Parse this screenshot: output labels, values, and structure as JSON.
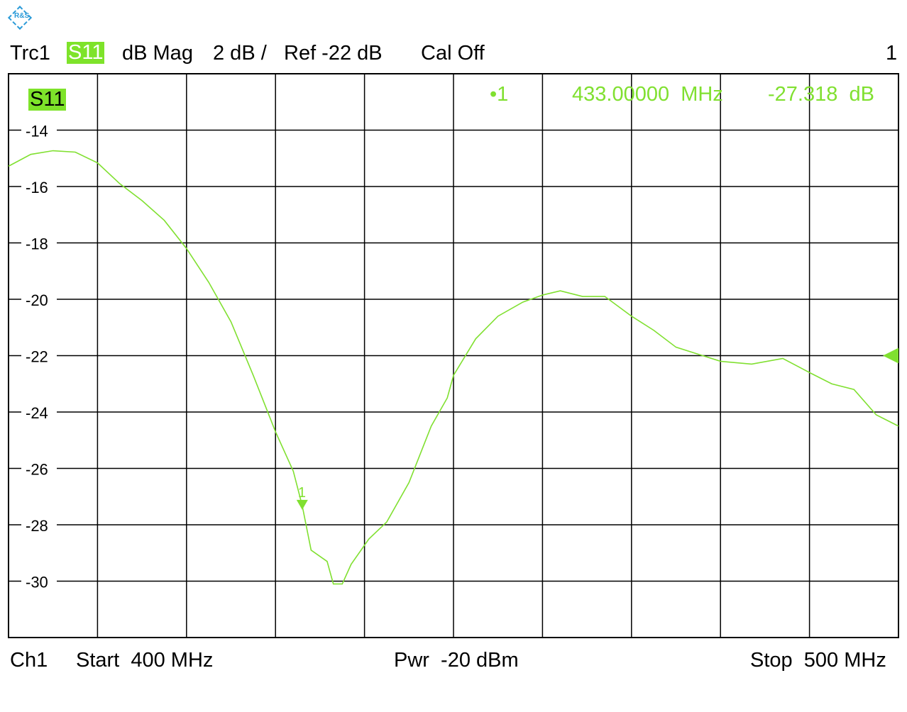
{
  "header": {
    "trace": "Trc1",
    "param": "S11",
    "format": "dB Mag",
    "scale": "2 dB /",
    "ref": "Ref -22 dB",
    "cal": "Cal Off",
    "window": "1"
  },
  "logo": "R&S",
  "footer": {
    "channel": "Ch1",
    "start": "Start  400 MHz",
    "power": "Pwr  -20 dBm",
    "stop": "Stop  500 MHz"
  },
  "colors": {
    "trace": "#80e030",
    "grid": "#000000",
    "logo": "#2a9ad8"
  },
  "chart_data": {
    "type": "line",
    "trace_label": "S11",
    "xlabel": "",
    "ylabel": "",
    "xlim": [
      400,
      500
    ],
    "ylim": [
      -32,
      -12
    ],
    "x_unit": "MHz",
    "y_unit": "dB",
    "grid": true,
    "ytick_labels": [
      "-14",
      "-16",
      "-18",
      "-20",
      "-22",
      "-24",
      "-26",
      "-28",
      "-30"
    ],
    "yticks": [
      -14,
      -16,
      -18,
      -20,
      -22,
      -24,
      -26,
      -28,
      -30
    ],
    "reference_level": -22,
    "marker": {
      "id": "1",
      "x": 433.0,
      "y": -27.318,
      "label": "1",
      "readout_id": "•1",
      "readout_freq": "433.00000  MHz",
      "readout_val": "-27.318  dB"
    },
    "series": [
      {
        "x": [
          400,
          402.5,
          405,
          407.5,
          410,
          412.5,
          415,
          417.5,
          420,
          422.5,
          425,
          427.5,
          430,
          432,
          433,
          434,
          435.8,
          436.5,
          437.5,
          438.5,
          440.5,
          442.5,
          445,
          447.5,
          449.3,
          450,
          452.5,
          455,
          457.8,
          460,
          462,
          464.5,
          467,
          470,
          472.5,
          475,
          478,
          480,
          483.5,
          487,
          490,
          492.5,
          495,
          497.5,
          500
        ],
        "y": [
          -15.28,
          -14.86,
          -14.73,
          -14.78,
          -15.16,
          -15.9,
          -16.5,
          -17.2,
          -18.2,
          -19.4,
          -20.8,
          -22.7,
          -24.7,
          -26.1,
          -27.318,
          -28.9,
          -29.3,
          -30.1,
          -30.1,
          -29.4,
          -28.5,
          -27.9,
          -26.5,
          -24.5,
          -23.5,
          -22.7,
          -21.4,
          -20.6,
          -20.1,
          -19.85,
          -19.7,
          -19.9,
          -19.9,
          -20.6,
          -21.1,
          -21.7,
          -22.0,
          -22.2,
          -22.3,
          -22.1,
          -22.6,
          -23.0,
          -23.2,
          -24.1,
          -24.5
        ]
      }
    ]
  }
}
